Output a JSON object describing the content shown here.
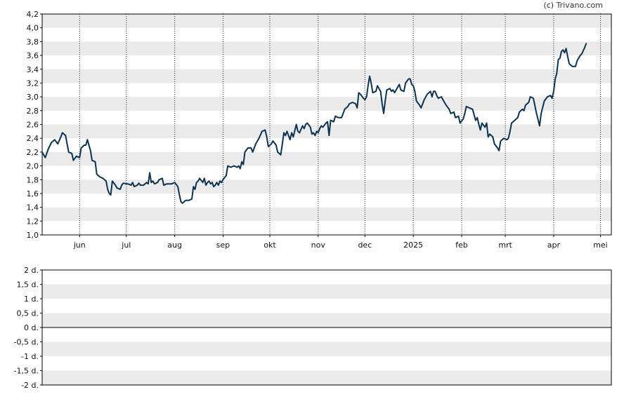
{
  "credit": "(c) Trivano.com",
  "colors": {
    "line": "#0d3350",
    "band": "#ebebeb",
    "grid": "#222222",
    "zero": "#000000"
  },
  "chart_data": [
    {
      "type": "line",
      "title": "",
      "xlabel": "",
      "ylabel": "",
      "ylim": [
        1.0,
        4.2
      ],
      "y_ticks": [
        "1,0",
        "1,2",
        "1,4",
        "1,6",
        "1,8",
        "2,0",
        "2,2",
        "2,4",
        "2,6",
        "2,8",
        "3,0",
        "3,2",
        "3,4",
        "3,6",
        "3,8",
        "4,0",
        "4,2"
      ],
      "x_range_days": [
        0,
        365
      ],
      "x_ticks": [
        {
          "label": "jun",
          "day": 24
        },
        {
          "label": "jul",
          "day": 54
        },
        {
          "label": "aug",
          "day": 85
        },
        {
          "label": "sep",
          "day": 116
        },
        {
          "label": "okt",
          "day": 146
        },
        {
          "label": "nov",
          "day": 177
        },
        {
          "label": "dec",
          "day": 207
        },
        {
          "label": "2025",
          "day": 238
        },
        {
          "label": "feb",
          "day": 269
        },
        {
          "label": "mrt",
          "day": 297
        },
        {
          "label": "apr",
          "day": 328
        },
        {
          "label": "mei",
          "day": 358
        }
      ],
      "series": [
        {
          "name": "",
          "points": [
            [
              0,
              2.2
            ],
            [
              2,
              2.12
            ],
            [
              4,
              2.25
            ],
            [
              6,
              2.34
            ],
            [
              8,
              2.38
            ],
            [
              10,
              2.32
            ],
            [
              12,
              2.42
            ],
            [
              13,
              2.48
            ],
            [
              15,
              2.44
            ],
            [
              17,
              2.2
            ],
            [
              19,
              2.18
            ],
            [
              20,
              2.08
            ],
            [
              22,
              2.14
            ],
            [
              24,
              2.12
            ],
            [
              25,
              2.26
            ],
            [
              27,
              2.3
            ],
            [
              28,
              2.3
            ],
            [
              29,
              2.38
            ],
            [
              31,
              2.22
            ],
            [
              32,
              2.08
            ],
            [
              34,
              2.06
            ],
            [
              35,
              1.88
            ],
            [
              37,
              1.84
            ],
            [
              39,
              1.82
            ],
            [
              41,
              1.78
            ],
            [
              42,
              1.66
            ],
            [
              43,
              1.6
            ],
            [
              44,
              1.58
            ],
            [
              45,
              1.78
            ],
            [
              47,
              1.72
            ],
            [
              48,
              1.68
            ],
            [
              50,
              1.66
            ],
            [
              51,
              1.72
            ],
            [
              52,
              1.75
            ],
            [
              54,
              1.74
            ],
            [
              55,
              1.74
            ],
            [
              57,
              1.72
            ],
            [
              58,
              1.76
            ],
            [
              59,
              1.7
            ],
            [
              61,
              1.72
            ],
            [
              62,
              1.75
            ],
            [
              63,
              1.72
            ],
            [
              65,
              1.72
            ],
            [
              67,
              1.76
            ],
            [
              68,
              1.74
            ],
            [
              69,
              1.9
            ],
            [
              70,
              1.76
            ],
            [
              71,
              1.78
            ],
            [
              72,
              1.74
            ],
            [
              74,
              1.76
            ],
            [
              75,
              1.8
            ],
            [
              77,
              1.82
            ],
            [
              78,
              1.72
            ],
            [
              80,
              1.74
            ],
            [
              81,
              1.74
            ],
            [
              83,
              1.74
            ],
            [
              84,
              1.75
            ],
            [
              85,
              1.76
            ],
            [
              87,
              1.7
            ],
            [
              88,
              1.58
            ],
            [
              89,
              1.48
            ],
            [
              90,
              1.46
            ],
            [
              92,
              1.5
            ],
            [
              94,
              1.5
            ],
            [
              96,
              1.52
            ],
            [
              97,
              1.7
            ],
            [
              98,
              1.66
            ],
            [
              99,
              1.76
            ],
            [
              100,
              1.78
            ],
            [
              101,
              1.82
            ],
            [
              103,
              1.76
            ],
            [
              104,
              1.82
            ],
            [
              105,
              1.72
            ],
            [
              106,
              1.76
            ],
            [
              107,
              1.78
            ],
            [
              108,
              1.74
            ],
            [
              109,
              1.76
            ],
            [
              110,
              1.7
            ],
            [
              111,
              1.72
            ],
            [
              112,
              1.76
            ],
            [
              113,
              1.72
            ],
            [
              114,
              1.78
            ],
            [
              115,
              1.76
            ],
            [
              116,
              1.8
            ],
            [
              118,
              1.86
            ],
            [
              119,
              2.0
            ],
            [
              121,
              1.98
            ],
            [
              123,
              2.0
            ],
            [
              125,
              1.98
            ],
            [
              126,
              2.0
            ],
            [
              127,
              1.96
            ],
            [
              128,
              2.06
            ],
            [
              129,
              2.02
            ],
            [
              130,
              2.2
            ],
            [
              132,
              2.26
            ],
            [
              134,
              2.26
            ],
            [
              135,
              2.2
            ],
            [
              137,
              2.32
            ],
            [
              139,
              2.4
            ],
            [
              141,
              2.5
            ],
            [
              143,
              2.52
            ],
            [
              144,
              2.42
            ],
            [
              145,
              2.28
            ],
            [
              147,
              2.32
            ],
            [
              148,
              2.36
            ],
            [
              150,
              2.3
            ],
            [
              151,
              2.2
            ],
            [
              153,
              2.16
            ],
            [
              154,
              2.32
            ],
            [
              155,
              2.48
            ],
            [
              156,
              2.44
            ],
            [
              157,
              2.5
            ],
            [
              159,
              2.38
            ],
            [
              160,
              2.48
            ],
            [
              161,
              2.42
            ],
            [
              163,
              2.6
            ],
            [
              164,
              2.5
            ],
            [
              165,
              2.48
            ],
            [
              167,
              2.58
            ],
            [
              168,
              2.54
            ],
            [
              169,
              2.6
            ],
            [
              170,
              2.62
            ],
            [
              172,
              2.56
            ],
            [
              173,
              2.46
            ],
            [
              174,
              2.48
            ],
            [
              175,
              2.44
            ],
            [
              176,
              2.5
            ],
            [
              177,
              2.48
            ],
            [
              178,
              2.54
            ],
            [
              179,
              2.58
            ],
            [
              180,
              2.56
            ],
            [
              182,
              2.62
            ],
            [
              183,
              2.64
            ],
            [
              184,
              2.44
            ],
            [
              185,
              2.66
            ],
            [
              187,
              2.64
            ],
            [
              188,
              2.72
            ],
            [
              190,
              2.7
            ],
            [
              192,
              2.7
            ],
            [
              194,
              2.82
            ],
            [
              196,
              2.86
            ],
            [
              197,
              2.9
            ],
            [
              199,
              2.92
            ],
            [
              201,
              2.9
            ],
            [
              202,
              2.84
            ],
            [
              203,
              3.06
            ],
            [
              204,
              3.04
            ],
            [
              206,
              2.98
            ],
            [
              207,
              2.96
            ],
            [
              208,
              3.0
            ],
            [
              209,
              3.16
            ],
            [
              210,
              3.3
            ],
            [
              211,
              3.2
            ],
            [
              212,
              3.06
            ],
            [
              214,
              3.08
            ],
            [
              215,
              3.16
            ],
            [
              217,
              3.08
            ],
            [
              218,
              2.9
            ],
            [
              219,
              2.76
            ],
            [
              220,
              2.94
            ],
            [
              221,
              3.1
            ],
            [
              223,
              3.12
            ],
            [
              224,
              3.08
            ],
            [
              225,
              3.1
            ],
            [
              226,
              3.06
            ],
            [
              228,
              3.14
            ],
            [
              229,
              3.18
            ],
            [
              230,
              3.1
            ],
            [
              232,
              3.08
            ],
            [
              233,
              3.2
            ],
            [
              235,
              3.26
            ],
            [
              236,
              3.26
            ],
            [
              237,
              3.18
            ],
            [
              238,
              3.16
            ],
            [
              239,
              3.08
            ],
            [
              240,
              2.94
            ],
            [
              242,
              2.88
            ],
            [
              243,
              2.84
            ],
            [
              245,
              2.96
            ],
            [
              247,
              3.04
            ],
            [
              249,
              3.08
            ],
            [
              250,
              3.0
            ],
            [
              251,
              3.08
            ],
            [
              252,
              3.08
            ],
            [
              253,
              3.02
            ],
            [
              254,
              2.98
            ],
            [
              256,
              3.0
            ],
            [
              258,
              2.92
            ],
            [
              259,
              2.88
            ],
            [
              261,
              2.82
            ],
            [
              262,
              2.76
            ],
            [
              264,
              2.78
            ],
            [
              265,
              2.7
            ],
            [
              267,
              2.72
            ],
            [
              268,
              2.62
            ],
            [
              270,
              2.68
            ],
            [
              271,
              2.76
            ],
            [
              272,
              2.86
            ],
            [
              274,
              2.84
            ],
            [
              276,
              2.82
            ],
            [
              277,
              2.74
            ],
            [
              278,
              2.66
            ],
            [
              279,
              2.7
            ],
            [
              280,
              2.6
            ],
            [
              281,
              2.52
            ],
            [
              282,
              2.62
            ],
            [
              284,
              2.56
            ],
            [
              285,
              2.62
            ],
            [
              286,
              2.42
            ],
            [
              287,
              2.46
            ],
            [
              289,
              2.42
            ],
            [
              290,
              2.32
            ],
            [
              292,
              2.26
            ],
            [
              293,
              2.22
            ],
            [
              294,
              2.36
            ],
            [
              296,
              2.4
            ],
            [
              298,
              2.38
            ],
            [
              299,
              2.4
            ],
            [
              300,
              2.5
            ],
            [
              301,
              2.62
            ],
            [
              303,
              2.66
            ],
            [
              305,
              2.7
            ],
            [
              306,
              2.78
            ],
            [
              308,
              2.82
            ],
            [
              309,
              2.8
            ],
            [
              310,
              2.88
            ],
            [
              312,
              2.92
            ],
            [
              313,
              3.0
            ],
            [
              315,
              2.98
            ],
            [
              317,
              2.76
            ],
            [
              319,
              2.58
            ],
            [
              320,
              2.76
            ],
            [
              322,
              2.94
            ],
            [
              324,
              3.0
            ],
            [
              326,
              3.02
            ],
            [
              327,
              2.98
            ],
            [
              328,
              3.08
            ],
            [
              329,
              3.26
            ],
            [
              330,
              3.34
            ],
            [
              331,
              3.54
            ],
            [
              332,
              3.56
            ],
            [
              333,
              3.66
            ],
            [
              334,
              3.68
            ],
            [
              335,
              3.64
            ],
            [
              336,
              3.7
            ],
            [
              337,
              3.58
            ],
            [
              338,
              3.48
            ],
            [
              340,
              3.44
            ],
            [
              342,
              3.44
            ],
            [
              343,
              3.52
            ],
            [
              345,
              3.6
            ],
            [
              346,
              3.62
            ],
            [
              348,
              3.72
            ],
            [
              349,
              3.78
            ]
          ]
        }
      ]
    },
    {
      "type": "line",
      "title": "",
      "xlabel": "",
      "ylabel": "",
      "ylim": [
        -2,
        2
      ],
      "y_ticks": [
        "-2 d.",
        "-1,5 d.",
        "-1 d.",
        "-0,5 d.",
        "0 d.",
        "0,5 d.",
        "1 d.",
        "1,5 d.",
        "2 d."
      ],
      "series": []
    }
  ]
}
